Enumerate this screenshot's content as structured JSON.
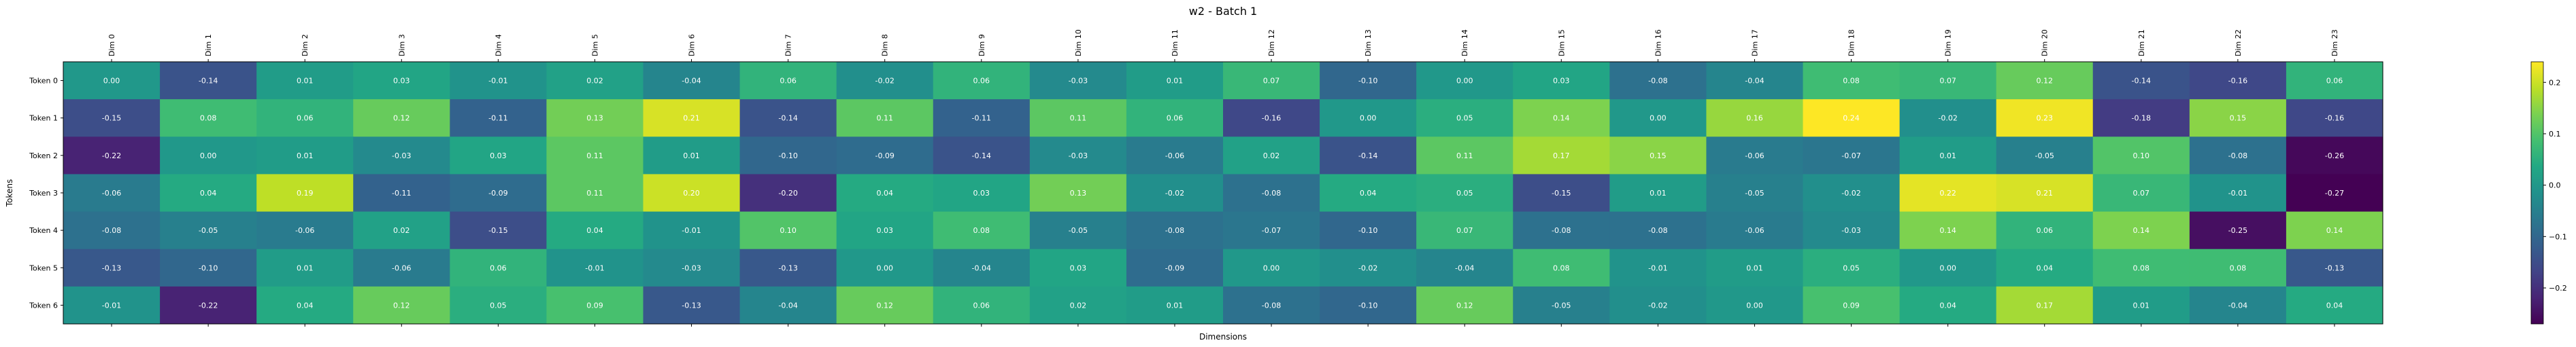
{
  "chart_data": {
    "type": "heatmap",
    "title": "w2 - Batch 1",
    "xlabel": "Dimensions",
    "ylabel": "Tokens",
    "columns": [
      "Dim 0",
      "Dim 1",
      "Dim 2",
      "Dim 3",
      "Dim 4",
      "Dim 5",
      "Dim 6",
      "Dim 7",
      "Dim 8",
      "Dim 9",
      "Dim 10",
      "Dim 11",
      "Dim 12",
      "Dim 13",
      "Dim 14",
      "Dim 15",
      "Dim 16",
      "Dim 17",
      "Dim 18",
      "Dim 19",
      "Dim 20",
      "Dim 21",
      "Dim 22",
      "Dim 23"
    ],
    "rows": [
      "Token 0",
      "Token 1",
      "Token 2",
      "Token 3",
      "Token 4",
      "Token 5",
      "Token 6"
    ],
    "values": [
      [
        -0.0,
        -0.14,
        0.01,
        0.03,
        -0.01,
        0.02,
        -0.04,
        0.06,
        -0.02,
        0.06,
        -0.03,
        0.01,
        0.07,
        -0.1,
        0.0,
        0.03,
        -0.08,
        -0.04,
        0.08,
        0.07,
        0.12,
        -0.14,
        -0.16,
        0.06
      ],
      [
        -0.15,
        0.08,
        0.06,
        0.12,
        -0.11,
        0.13,
        0.21,
        -0.14,
        0.11,
        -0.11,
        0.11,
        0.06,
        -0.16,
        -0.0,
        0.05,
        0.14,
        0.0,
        0.16,
        0.24,
        -0.02,
        0.23,
        -0.18,
        0.15,
        -0.16
      ],
      [
        -0.22,
        -0.0,
        0.01,
        -0.03,
        0.03,
        0.11,
        0.01,
        -0.1,
        -0.09,
        -0.14,
        -0.03,
        -0.06,
        0.02,
        -0.14,
        0.11,
        0.17,
        0.15,
        -0.06,
        -0.07,
        0.01,
        -0.05,
        0.1,
        -0.08,
        -0.26
      ],
      [
        -0.06,
        0.04,
        0.19,
        -0.11,
        -0.09,
        0.11,
        0.2,
        -0.2,
        0.04,
        0.03,
        0.13,
        -0.02,
        -0.08,
        0.04,
        0.05,
        -0.15,
        0.01,
        -0.05,
        -0.02,
        0.22,
        0.21,
        0.07,
        -0.01,
        -0.27
      ],
      [
        -0.08,
        -0.05,
        -0.06,
        0.02,
        -0.15,
        0.04,
        -0.01,
        0.1,
        0.03,
        0.08,
        -0.05,
        -0.08,
        -0.07,
        -0.1,
        0.07,
        -0.08,
        -0.08,
        -0.06,
        -0.03,
        0.14,
        0.06,
        0.14,
        -0.25,
        0.14
      ],
      [
        -0.13,
        -0.1,
        0.01,
        -0.06,
        0.06,
        -0.01,
        -0.03,
        -0.13,
        -0.0,
        -0.04,
        0.03,
        -0.09,
        0.0,
        -0.02,
        -0.04,
        0.08,
        -0.01,
        0.01,
        0.05,
        0.0,
        0.04,
        0.08,
        0.08,
        -0.13
      ],
      [
        -0.01,
        -0.22,
        0.04,
        0.12,
        0.05,
        0.09,
        -0.13,
        -0.04,
        0.12,
        0.06,
        0.02,
        0.01,
        -0.08,
        -0.1,
        0.12,
        -0.05,
        -0.02,
        -0.0,
        0.09,
        0.04,
        0.17,
        0.01,
        -0.04,
        0.04
      ]
    ],
    "vmin": -0.27,
    "vmax": 0.24,
    "colormap": "viridis",
    "colorbar_ticks": [
      -0.2,
      -0.1,
      0.0,
      0.1,
      0.2
    ],
    "colorbar_tick_labels": [
      "−0.2",
      "−0.1",
      "0.0",
      "0.1",
      "0.2"
    ],
    "annotation_text_color": "#ffffff",
    "grid": false
  }
}
